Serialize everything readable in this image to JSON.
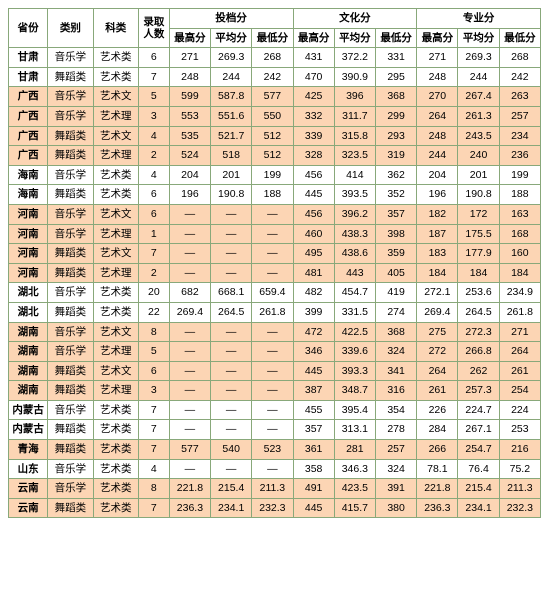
{
  "colors": {
    "border": "#88a87a",
    "shade_bg": "#fcd5b4",
    "plain_bg": "#ffffff",
    "text": "#000000"
  },
  "typography": {
    "font_family": "Microsoft YaHei",
    "header_fontsize_pt": 8,
    "cell_fontsize_pt": 8,
    "header_weight": "bold"
  },
  "header": {
    "province": "省份",
    "category": "类别",
    "subject": "科类",
    "admit_count": "录取人数",
    "group_toudang": "投档分",
    "group_wenhua": "文化分",
    "group_zhuanye": "专业分",
    "high": "最高分",
    "avg": "平均分",
    "low": "最低分"
  },
  "rows": [
    {
      "shade": false,
      "province": "甘肃",
      "category": "音乐学",
      "subject": "艺术类",
      "count": "6",
      "td_hi": "271",
      "td_avg": "269.3",
      "td_lo": "268",
      "wh_hi": "431",
      "wh_avg": "372.2",
      "wh_lo": "331",
      "zy_hi": "271",
      "zy_avg": "269.3",
      "zy_lo": "268"
    },
    {
      "shade": false,
      "province": "甘肃",
      "category": "舞蹈类",
      "subject": "艺术类",
      "count": "7",
      "td_hi": "248",
      "td_avg": "244",
      "td_lo": "242",
      "wh_hi": "470",
      "wh_avg": "390.9",
      "wh_lo": "295",
      "zy_hi": "248",
      "zy_avg": "244",
      "zy_lo": "242"
    },
    {
      "shade": true,
      "province": "广西",
      "category": "音乐学",
      "subject": "艺术文",
      "count": "5",
      "td_hi": "599",
      "td_avg": "587.8",
      "td_lo": "577",
      "wh_hi": "425",
      "wh_avg": "396",
      "wh_lo": "368",
      "zy_hi": "270",
      "zy_avg": "267.4",
      "zy_lo": "263"
    },
    {
      "shade": true,
      "province": "广西",
      "category": "音乐学",
      "subject": "艺术理",
      "count": "3",
      "td_hi": "553",
      "td_avg": "551.6",
      "td_lo": "550",
      "wh_hi": "332",
      "wh_avg": "311.7",
      "wh_lo": "299",
      "zy_hi": "264",
      "zy_avg": "261.3",
      "zy_lo": "257"
    },
    {
      "shade": true,
      "province": "广西",
      "category": "舞蹈类",
      "subject": "艺术文",
      "count": "4",
      "td_hi": "535",
      "td_avg": "521.7",
      "td_lo": "512",
      "wh_hi": "339",
      "wh_avg": "315.8",
      "wh_lo": "293",
      "zy_hi": "248",
      "zy_avg": "243.5",
      "zy_lo": "234"
    },
    {
      "shade": true,
      "province": "广西",
      "category": "舞蹈类",
      "subject": "艺术理",
      "count": "2",
      "td_hi": "524",
      "td_avg": "518",
      "td_lo": "512",
      "wh_hi": "328",
      "wh_avg": "323.5",
      "wh_lo": "319",
      "zy_hi": "244",
      "zy_avg": "240",
      "zy_lo": "236"
    },
    {
      "shade": false,
      "province": "海南",
      "category": "音乐学",
      "subject": "艺术类",
      "count": "4",
      "td_hi": "204",
      "td_avg": "201",
      "td_lo": "199",
      "wh_hi": "456",
      "wh_avg": "414",
      "wh_lo": "362",
      "zy_hi": "204",
      "zy_avg": "201",
      "zy_lo": "199"
    },
    {
      "shade": false,
      "province": "海南",
      "category": "舞蹈类",
      "subject": "艺术类",
      "count": "6",
      "td_hi": "196",
      "td_avg": "190.8",
      "td_lo": "188",
      "wh_hi": "445",
      "wh_avg": "393.5",
      "wh_lo": "352",
      "zy_hi": "196",
      "zy_avg": "190.8",
      "zy_lo": "188"
    },
    {
      "shade": true,
      "province": "河南",
      "category": "音乐学",
      "subject": "艺术文",
      "count": "6",
      "td_hi": "—",
      "td_avg": "—",
      "td_lo": "—",
      "wh_hi": "456",
      "wh_avg": "396.2",
      "wh_lo": "357",
      "zy_hi": "182",
      "zy_avg": "172",
      "zy_lo": "163"
    },
    {
      "shade": true,
      "province": "河南",
      "category": "音乐学",
      "subject": "艺术理",
      "count": "1",
      "td_hi": "—",
      "td_avg": "—",
      "td_lo": "—",
      "wh_hi": "460",
      "wh_avg": "438.3",
      "wh_lo": "398",
      "zy_hi": "187",
      "zy_avg": "175.5",
      "zy_lo": "168"
    },
    {
      "shade": true,
      "province": "河南",
      "category": "舞蹈类",
      "subject": "艺术文",
      "count": "7",
      "td_hi": "—",
      "td_avg": "—",
      "td_lo": "—",
      "wh_hi": "495",
      "wh_avg": "438.6",
      "wh_lo": "359",
      "zy_hi": "183",
      "zy_avg": "177.9",
      "zy_lo": "160"
    },
    {
      "shade": true,
      "province": "河南",
      "category": "舞蹈类",
      "subject": "艺术理",
      "count": "2",
      "td_hi": "—",
      "td_avg": "—",
      "td_lo": "—",
      "wh_hi": "481",
      "wh_avg": "443",
      "wh_lo": "405",
      "zy_hi": "184",
      "zy_avg": "184",
      "zy_lo": "184"
    },
    {
      "shade": false,
      "province": "湖北",
      "category": "音乐学",
      "subject": "艺术类",
      "count": "20",
      "td_hi": "682",
      "td_avg": "668.1",
      "td_lo": "659.4",
      "wh_hi": "482",
      "wh_avg": "454.7",
      "wh_lo": "419",
      "zy_hi": "272.1",
      "zy_avg": "253.6",
      "zy_lo": "234.9"
    },
    {
      "shade": false,
      "province": "湖北",
      "category": "舞蹈类",
      "subject": "艺术类",
      "count": "22",
      "td_hi": "269.4",
      "td_avg": "264.5",
      "td_lo": "261.8",
      "wh_hi": "399",
      "wh_avg": "331.5",
      "wh_lo": "274",
      "zy_hi": "269.4",
      "zy_avg": "264.5",
      "zy_lo": "261.8"
    },
    {
      "shade": true,
      "province": "湖南",
      "category": "音乐学",
      "subject": "艺术文",
      "count": "8",
      "td_hi": "—",
      "td_avg": "—",
      "td_lo": "—",
      "wh_hi": "472",
      "wh_avg": "422.5",
      "wh_lo": "368",
      "zy_hi": "275",
      "zy_avg": "272.3",
      "zy_lo": "271"
    },
    {
      "shade": true,
      "province": "湖南",
      "category": "音乐学",
      "subject": "艺术理",
      "count": "5",
      "td_hi": "—",
      "td_avg": "—",
      "td_lo": "—",
      "wh_hi": "346",
      "wh_avg": "339.6",
      "wh_lo": "324",
      "zy_hi": "272",
      "zy_avg": "266.8",
      "zy_lo": "264"
    },
    {
      "shade": true,
      "province": "湖南",
      "category": "舞蹈类",
      "subject": "艺术文",
      "count": "6",
      "td_hi": "—",
      "td_avg": "—",
      "td_lo": "—",
      "wh_hi": "445",
      "wh_avg": "393.3",
      "wh_lo": "341",
      "zy_hi": "264",
      "zy_avg": "262",
      "zy_lo": "261"
    },
    {
      "shade": true,
      "province": "湖南",
      "category": "舞蹈类",
      "subject": "艺术理",
      "count": "3",
      "td_hi": "—",
      "td_avg": "—",
      "td_lo": "—",
      "wh_hi": "387",
      "wh_avg": "348.7",
      "wh_lo": "316",
      "zy_hi": "261",
      "zy_avg": "257.3",
      "zy_lo": "254"
    },
    {
      "shade": false,
      "province": "内蒙古",
      "category": "音乐学",
      "subject": "艺术类",
      "count": "7",
      "td_hi": "—",
      "td_avg": "—",
      "td_lo": "—",
      "wh_hi": "455",
      "wh_avg": "395.4",
      "wh_lo": "354",
      "zy_hi": "226",
      "zy_avg": "224.7",
      "zy_lo": "224"
    },
    {
      "shade": false,
      "province": "内蒙古",
      "category": "舞蹈类",
      "subject": "艺术类",
      "count": "7",
      "td_hi": "—",
      "td_avg": "—",
      "td_lo": "—",
      "wh_hi": "357",
      "wh_avg": "313.1",
      "wh_lo": "278",
      "zy_hi": "284",
      "zy_avg": "267.1",
      "zy_lo": "253"
    },
    {
      "shade": true,
      "province": "青海",
      "category": "舞蹈类",
      "subject": "艺术类",
      "count": "7",
      "td_hi": "577",
      "td_avg": "540",
      "td_lo": "523",
      "wh_hi": "361",
      "wh_avg": "281",
      "wh_lo": "257",
      "zy_hi": "266",
      "zy_avg": "254.7",
      "zy_lo": "216"
    },
    {
      "shade": false,
      "province": "山东",
      "category": "音乐学",
      "subject": "艺术类",
      "count": "4",
      "td_hi": "—",
      "td_avg": "—",
      "td_lo": "—",
      "wh_hi": "358",
      "wh_avg": "346.3",
      "wh_lo": "324",
      "zy_hi": "78.1",
      "zy_avg": "76.4",
      "zy_lo": "75.2"
    },
    {
      "shade": true,
      "province": "云南",
      "category": "音乐学",
      "subject": "艺术类",
      "count": "8",
      "td_hi": "221.8",
      "td_avg": "215.4",
      "td_lo": "211.3",
      "wh_hi": "491",
      "wh_avg": "423.5",
      "wh_lo": "391",
      "zy_hi": "221.8",
      "zy_avg": "215.4",
      "zy_lo": "211.3"
    },
    {
      "shade": true,
      "province": "云南",
      "category": "舞蹈类",
      "subject": "艺术类",
      "count": "7",
      "td_hi": "236.3",
      "td_avg": "234.1",
      "td_lo": "232.3",
      "wh_hi": "445",
      "wh_avg": "415.7",
      "wh_lo": "380",
      "zy_hi": "236.3",
      "zy_avg": "234.1",
      "zy_lo": "232.3"
    }
  ]
}
